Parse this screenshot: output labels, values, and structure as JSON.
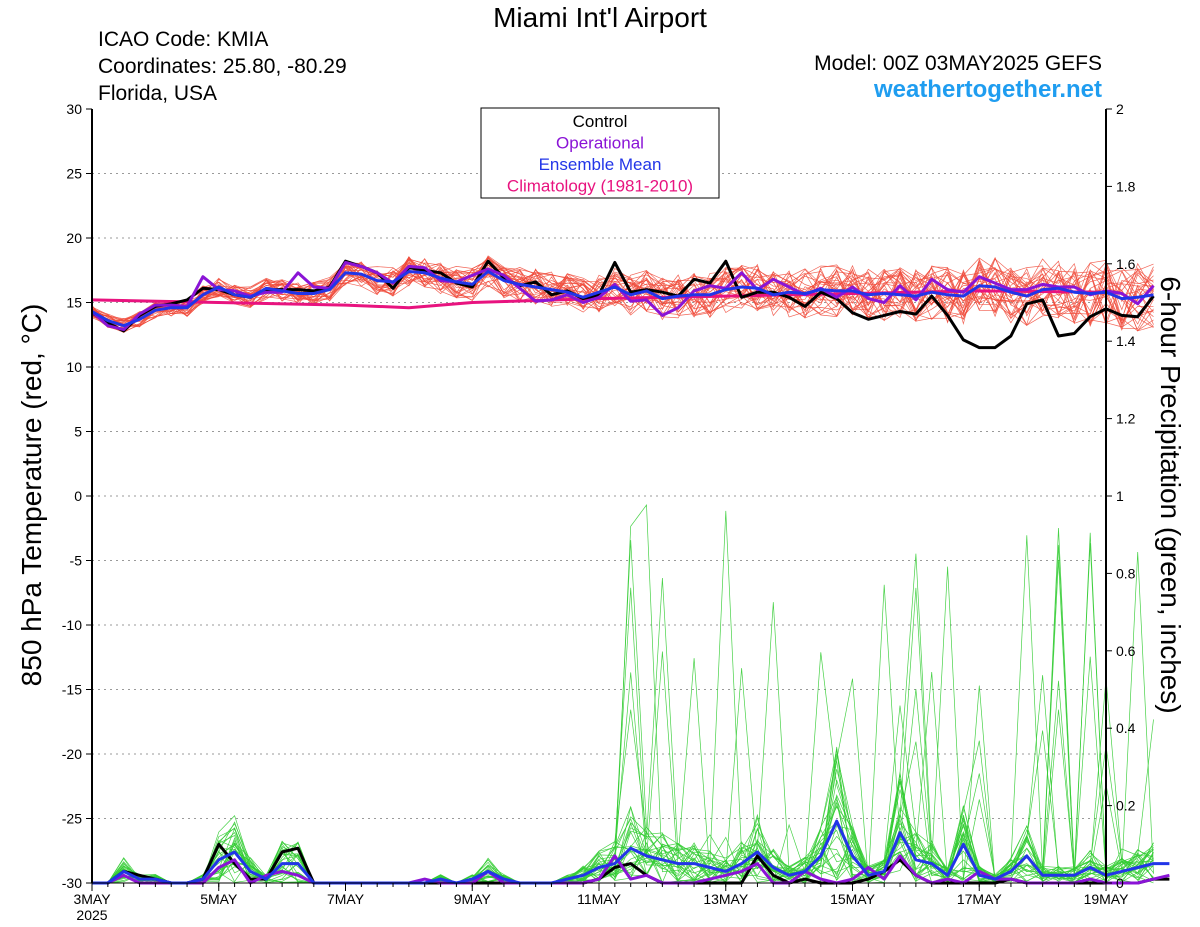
{
  "header": {
    "title": "Miami Int'l Airport",
    "icao": "ICAO Code: KMIA",
    "coordinates": "Coordinates: 25.80, -80.29",
    "region": "Florida, USA",
    "model": "Model: 00Z 03MAY2025 GEFS",
    "site": "weathertogether.net"
  },
  "chart_data": {
    "type": "line",
    "ylabel_left": "850 hPa Temperature (red, °C)",
    "ylabel_right": "6-hour Precipitation (green, inches)",
    "ylim_left": [
      -30,
      30
    ],
    "ylim_right": [
      0,
      2
    ],
    "yticks_left": [
      30,
      25,
      20,
      15,
      10,
      5,
      0,
      -5,
      -10,
      -15,
      -20,
      -25,
      -30
    ],
    "yticks_right": [
      2,
      1.8,
      1.6,
      1.4,
      1.2,
      1,
      0.8,
      0.6,
      0.4,
      0.2,
      0
    ],
    "x_step_hours": 6,
    "x_hours": 384,
    "xticks": [
      {
        "label": "3MAY",
        "sub": "2025",
        "hour": 0
      },
      {
        "label": "5MAY",
        "hour": 48
      },
      {
        "label": "7MAY",
        "hour": 96
      },
      {
        "label": "9MAY",
        "hour": 144
      },
      {
        "label": "11MAY",
        "hour": 192
      },
      {
        "label": "13MAY",
        "hour": 240
      },
      {
        "label": "15MAY",
        "hour": 288
      },
      {
        "label": "17MAY",
        "hour": 336
      },
      {
        "label": "19MAY",
        "hour": 384
      }
    ],
    "grid": "dotted horizontal",
    "legend": {
      "placement": "top-center",
      "items": [
        {
          "label": "Control",
          "color": "#000000"
        },
        {
          "label": "Operational",
          "color": "#8a14d6"
        },
        {
          "label": "Ensemble Mean",
          "color": "#2235e8"
        },
        {
          "label": "Climatology (1981-2010)",
          "color": "#e8137f"
        }
      ]
    },
    "colors": {
      "member_temp": "#f04a3a",
      "member_precip": "#33cc33",
      "control": "#000000",
      "operational": "#8a14d6",
      "ensemble_mean": "#2235e8",
      "climatology": "#e8137f"
    },
    "series": [
      {
        "name": "Control",
        "axis": "temp",
        "values": [
          14.2,
          13.4,
          12.8,
          14.0,
          14.7,
          14.9,
          15.2,
          16.1,
          16.0,
          15.6,
          15.4,
          16.0,
          16.0,
          16.0,
          15.9,
          16.2,
          18.2,
          17.8,
          17.3,
          16.1,
          17.7,
          17.5,
          17.3,
          16.5,
          16.2,
          18.2,
          16.9,
          16.3,
          16.6,
          15.6,
          15.9,
          15.3,
          15.6,
          18.1,
          15.8,
          16.0,
          15.8,
          15.5,
          16.8,
          16.5,
          18.2,
          15.4,
          15.8,
          15.8,
          15.4,
          14.7,
          15.8,
          15.3,
          14.2,
          13.7,
          14.0,
          14.3,
          14.1,
          15.5,
          14.0,
          12.1,
          11.5,
          11.5,
          12.4,
          14.9,
          15.2,
          12.4,
          12.6,
          13.9,
          14.5,
          14.0,
          13.9,
          15.5
        ]
      },
      {
        "name": "Operational",
        "axis": "temp",
        "values": [
          14.3,
          13.2,
          12.9,
          14.1,
          14.8,
          14.8,
          14.7,
          17.0,
          16.0,
          15.9,
          15.5,
          15.8,
          15.8,
          17.3,
          16.2,
          16.1,
          18.1,
          17.8,
          17.3,
          16.5,
          17.8,
          17.7,
          16.7,
          16.6,
          17.1,
          17.6,
          17.1,
          16.1,
          15.1,
          15.2,
          15.6,
          15.0,
          15.4,
          16.4,
          15.1,
          15.2,
          14.0,
          14.6,
          15.9,
          16.3,
          16.1,
          17.3,
          16.0,
          16.8,
          16.2,
          15.6,
          16.1,
          15.4,
          16.2,
          15.3,
          15.0,
          16.3,
          15.2,
          16.8,
          16.0,
          15.8,
          17.0,
          16.5,
          16.0,
          16.0,
          16.4,
          16.2,
          16.2,
          15.6,
          15.9,
          15.7,
          14.9,
          16.3
        ]
      },
      {
        "name": "Ensemble Mean",
        "axis": "temp",
        "values": [
          14.3,
          13.6,
          13.2,
          13.7,
          14.4,
          14.6,
          14.6,
          15.6,
          16.2,
          15.6,
          15.4,
          16.1,
          15.9,
          15.7,
          15.7,
          16.0,
          17.3,
          17.2,
          16.7,
          16.6,
          17.4,
          17.3,
          16.9,
          16.6,
          16.4,
          17.4,
          16.7,
          16.4,
          16.2,
          16.0,
          15.8,
          15.4,
          15.8,
          16.2,
          15.6,
          15.9,
          15.3,
          15.5,
          15.6,
          15.6,
          16.0,
          16.2,
          16.1,
          15.6,
          15.8,
          15.7,
          16.0,
          15.9,
          15.9,
          15.6,
          15.7,
          15.6,
          15.5,
          15.8,
          15.6,
          15.5,
          16.3,
          16.2,
          15.8,
          15.5,
          16.0,
          16.1,
          15.8,
          15.7,
          15.8,
          15.3,
          15.4,
          15.6
        ]
      },
      {
        "name": "Climatology (1981-2010)",
        "axis": "temp",
        "x_hours": [
          0,
          96,
          120,
          144,
          192,
          240,
          288,
          336,
          384
        ],
        "values": [
          15.2,
          14.8,
          14.6,
          15.0,
          15.3,
          15.5,
          15.7,
          15.9,
          15.8
        ]
      },
      {
        "name": "Control",
        "axis": "precip",
        "values": [
          0,
          0,
          0.03,
          0.02,
          0.01,
          0,
          0,
          0.01,
          0.1,
          0.05,
          0.01,
          0.01,
          0.08,
          0.09,
          0,
          0,
          0,
          0,
          0,
          0,
          0,
          0,
          0,
          0,
          0,
          0,
          0,
          0,
          0,
          0,
          0,
          0,
          0.01,
          0.04,
          0.05,
          0.02,
          0,
          0,
          0,
          0,
          0,
          0,
          0.07,
          0.02,
          0,
          0.01,
          0,
          0,
          0,
          0.01,
          0.03,
          0.06,
          0.02,
          0,
          0,
          0,
          0,
          0,
          0.01,
          0,
          0,
          0,
          0,
          0,
          0,
          0,
          0,
          0.01,
          0.01
        ]
      },
      {
        "name": "Operational",
        "axis": "precip",
        "values": [
          0,
          0,
          0.02,
          0,
          0,
          0,
          0,
          0,
          0.04,
          0.06,
          0,
          0.02,
          0.03,
          0.02,
          0,
          0,
          0,
          0,
          0,
          0,
          0,
          0.01,
          0,
          0,
          0,
          0.03,
          0,
          0,
          0,
          0,
          0,
          0,
          0.01,
          0.07,
          0.01,
          0.02,
          0,
          0,
          0,
          0.01,
          0.02,
          0.03,
          0.05,
          0,
          0,
          0.03,
          0.01,
          0,
          0.01,
          0.04,
          0.01,
          0.07,
          0.02,
          0,
          0.01,
          0,
          0.03,
          0.01,
          0.01,
          0,
          0,
          0,
          0,
          0.01,
          0,
          0,
          0,
          0.01,
          0.02
        ]
      },
      {
        "name": "Ensemble Mean",
        "axis": "precip",
        "values": [
          0,
          0,
          0.03,
          0.01,
          0.01,
          0,
          0,
          0.01,
          0.06,
          0.08,
          0.03,
          0.01,
          0.05,
          0.05,
          0,
          0,
          0,
          0,
          0,
          0,
          0,
          0,
          0.01,
          0,
          0.01,
          0.03,
          0.01,
          0,
          0,
          0,
          0.01,
          0.02,
          0.04,
          0.05,
          0.09,
          0.07,
          0.06,
          0.05,
          0.05,
          0.04,
          0.03,
          0.05,
          0.08,
          0.04,
          0.02,
          0.03,
          0.07,
          0.16,
          0.07,
          0.02,
          0.03,
          0.13,
          0.06,
          0.05,
          0.02,
          0.1,
          0.02,
          0.01,
          0.03,
          0.07,
          0.02,
          0.02,
          0.02,
          0.04,
          0.02,
          0.03,
          0.04,
          0.05,
          0.05
        ]
      }
    ]
  }
}
